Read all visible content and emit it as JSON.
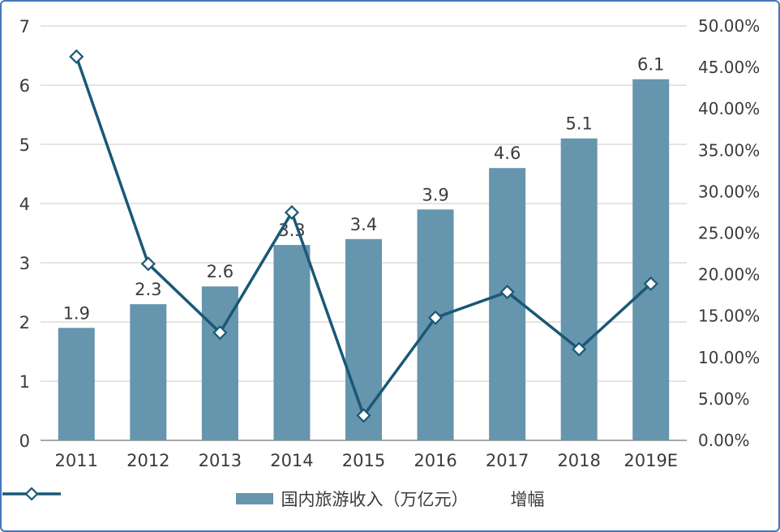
{
  "chart_data": {
    "type": "bar",
    "subtype": "combo-bar-line",
    "categories": [
      "2011",
      "2012",
      "2013",
      "2014",
      "2015",
      "2016",
      "2017",
      "2018",
      "2019E"
    ],
    "series": [
      {
        "name": "国内旅游收入（万亿元）",
        "type": "bar",
        "axis": "left",
        "color": "#6695ae",
        "values": [
          1.9,
          2.3,
          2.6,
          3.3,
          3.4,
          3.9,
          4.6,
          5.1,
          6.1
        ],
        "labels": [
          "1.9",
          "2.3",
          "2.6",
          "3.3",
          "3.4",
          "3.9",
          "4.6",
          "5.1",
          "6.1"
        ]
      },
      {
        "name": "增幅",
        "type": "line",
        "axis": "right",
        "color": "#1a5876",
        "marker": "diamond",
        "marker_fill": "#ffffff",
        "values": [
          46.3,
          21.3,
          13.0,
          27.5,
          3.0,
          14.8,
          17.9,
          11.0,
          18.9
        ]
      }
    ],
    "left_axis": {
      "min": 0,
      "max": 7,
      "step": 1,
      "ticks": [
        "0",
        "1",
        "2",
        "3",
        "4",
        "5",
        "6",
        "7"
      ]
    },
    "right_axis": {
      "min": 0,
      "max": 50,
      "step": 5,
      "ticks": [
        "0.00%",
        "5.00%",
        "10.00%",
        "15.00%",
        "20.00%",
        "25.00%",
        "30.00%",
        "35.00%",
        "40.00%",
        "45.00%",
        "50.00%"
      ]
    },
    "grid": true,
    "legend_position": "bottom",
    "title": ""
  },
  "colors": {
    "panel_border": "#4577be",
    "gridline": "#c9c9c9",
    "axis_line": "#8c8c8c",
    "text": "#3b3b3b"
  }
}
